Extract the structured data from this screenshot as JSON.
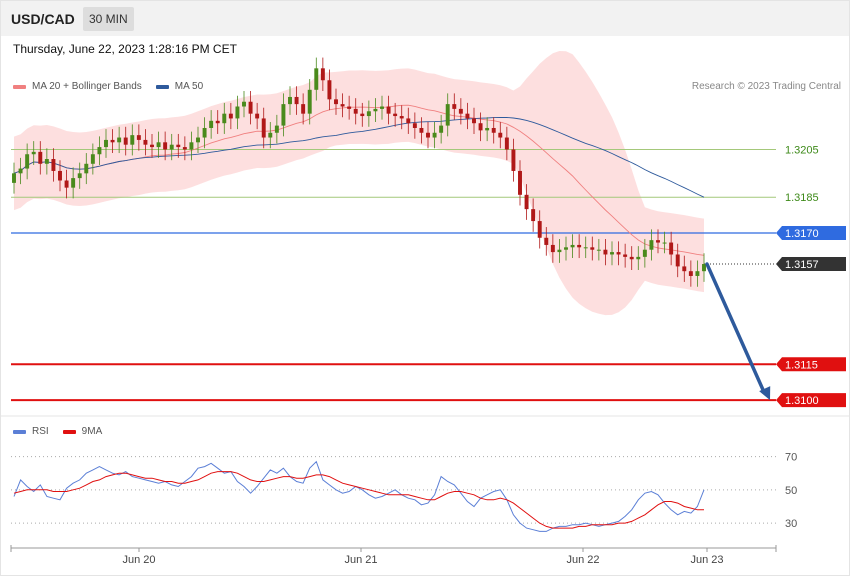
{
  "header": {
    "symbol": "USD/CAD",
    "timeframe": "30 MIN"
  },
  "datetime": "Thursday, June 22, 2023 1:28:16 PM CET",
  "legend_main": [
    {
      "label": "MA 20 + Bollinger Bands",
      "color": "#f08080"
    },
    {
      "label": "MA 50",
      "color": "#2e5a9c"
    }
  ],
  "credit": "Research © 2023 Trading Central",
  "legend_rsi": [
    {
      "label": "RSI",
      "color": "#5b7fd6"
    },
    {
      "label": "9MA",
      "color": "#e01010"
    }
  ],
  "colors": {
    "up": "#4a8a1c",
    "down": "#b01818",
    "resistance": "#2f6be0",
    "support": "#e01010",
    "green_level": "#a4c87a",
    "band": "#fdd9d9",
    "arrow": "#2e5a9c"
  },
  "chart_data": [
    {
      "type": "candlestick",
      "instrument": "USD/CAD",
      "timeframe": "30 MIN",
      "x_ticks": [
        "Jun 20",
        "Jun 21",
        "Jun 22",
        "Jun 23"
      ],
      "y_range": [
        1.3095,
        1.3245
      ],
      "closes": [
        1.3195,
        1.3197,
        1.3203,
        1.3204,
        1.3199,
        1.3201,
        1.3196,
        1.3192,
        1.3189,
        1.3193,
        1.3195,
        1.3199,
        1.3203,
        1.3206,
        1.3209,
        1.3208,
        1.321,
        1.3207,
        1.3211,
        1.3209,
        1.3207,
        1.3206,
        1.3208,
        1.3205,
        1.3207,
        1.3206,
        1.3205,
        1.3208,
        1.321,
        1.3214,
        1.3217,
        1.3216,
        1.322,
        1.3218,
        1.3223,
        1.3225,
        1.322,
        1.3218,
        1.321,
        1.3212,
        1.3215,
        1.3224,
        1.3227,
        1.3224,
        1.322,
        1.323,
        1.3239,
        1.3234,
        1.3226,
        1.3224,
        1.3223,
        1.3222,
        1.322,
        1.3219,
        1.3221,
        1.3222,
        1.3223,
        1.322,
        1.3219,
        1.3218,
        1.3216,
        1.3214,
        1.3212,
        1.321,
        1.3212,
        1.3215,
        1.3224,
        1.3222,
        1.322,
        1.3218,
        1.3216,
        1.3213,
        1.3214,
        1.3212,
        1.321,
        1.3205,
        1.3196,
        1.3186,
        1.318,
        1.3175,
        1.3168,
        1.3165,
        1.3162,
        1.3163,
        1.3164,
        1.3165,
        1.3164,
        1.3164,
        1.3163,
        1.3163,
        1.3161,
        1.3162,
        1.3161,
        1.316,
        1.3159,
        1.316,
        1.3163,
        1.3167,
        1.3166,
        1.3166,
        1.3161,
        1.3156,
        1.3154,
        1.3152,
        1.3154,
        1.3157
      ],
      "levels": [
        {
          "value": 1.3205,
          "label": "1.3205",
          "kind": "resistance-light"
        },
        {
          "value": 1.3185,
          "label": "1.3185",
          "kind": "resistance-light"
        },
        {
          "value": 1.317,
          "label": "1.3170",
          "kind": "resistance"
        },
        {
          "value": 1.3157,
          "label": "1.3157",
          "kind": "last-price"
        },
        {
          "value": 1.3115,
          "label": "1.3115",
          "kind": "support"
        },
        {
          "value": 1.31,
          "label": "1.3100",
          "kind": "support"
        }
      ],
      "forecast_arrow": {
        "from": 1.3157,
        "to": 1.31,
        "direction": "down"
      }
    },
    {
      "type": "line",
      "name": "RSI",
      "y_ticks": [
        70,
        50,
        30
      ],
      "y_range": [
        15,
        80
      ],
      "series": [
        {
          "name": "RSI",
          "values": [
            46,
            56,
            52,
            49,
            53,
            46,
            45,
            44,
            51,
            54,
            56,
            60,
            62,
            64,
            62,
            60,
            59,
            61,
            58,
            57,
            56,
            55,
            54,
            55,
            53,
            52,
            55,
            58,
            63,
            64,
            66,
            63,
            60,
            61,
            55,
            52,
            48,
            52,
            57,
            62,
            60,
            63,
            58,
            55,
            54,
            63,
            67,
            56,
            53,
            50,
            48,
            49,
            52,
            50,
            47,
            45,
            46,
            48,
            50,
            47,
            45,
            44,
            41,
            42,
            47,
            58,
            55,
            53,
            48,
            43,
            40,
            45,
            47,
            49,
            50,
            44,
            35,
            30,
            27,
            26,
            25,
            25,
            27,
            28,
            28,
            29,
            29,
            30,
            29,
            28,
            29,
            30,
            31,
            34,
            38,
            44,
            48,
            49,
            47,
            42,
            38,
            35,
            37,
            36,
            40,
            50
          ]
        },
        {
          "name": "9MA",
          "values": [
            48,
            49,
            50,
            50,
            50,
            50,
            49,
            49,
            49,
            50,
            51,
            53,
            55,
            56,
            58,
            59,
            60,
            60,
            59,
            58,
            57,
            57,
            56,
            55,
            55,
            54,
            54,
            55,
            56,
            58,
            60,
            61,
            61,
            61,
            60,
            58,
            56,
            55,
            55,
            56,
            57,
            58,
            58,
            57,
            57,
            58,
            59,
            59,
            58,
            56,
            54,
            53,
            52,
            51,
            50,
            49,
            48,
            47,
            47,
            47,
            47,
            46,
            45,
            44,
            44,
            46,
            48,
            49,
            49,
            48,
            47,
            45,
            44,
            44,
            45,
            44,
            42,
            39,
            36,
            33,
            30,
            28,
            27,
            27,
            27,
            27,
            28,
            28,
            29,
            29,
            29,
            29,
            30,
            30,
            31,
            33,
            35,
            38,
            41,
            43,
            43,
            42,
            40,
            39,
            38,
            38
          ]
        }
      ]
    }
  ]
}
